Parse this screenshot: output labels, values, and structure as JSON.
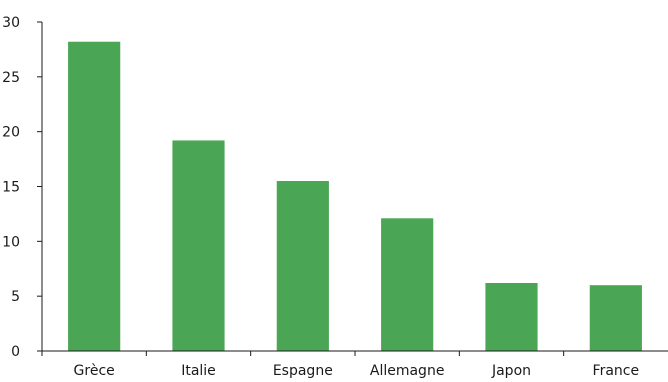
{
  "chart_data": {
    "type": "bar",
    "categories": [
      "Grèce",
      "Italie",
      "Espagne",
      "Allemagne",
      "Japon",
      "France"
    ],
    "values": [
      28.2,
      19.2,
      15.5,
      12.1,
      6.2,
      6.0
    ],
    "title": "",
    "xlabel": "",
    "ylabel": "",
    "ylim": [
      0,
      30
    ],
    "yticks": [
      0,
      5,
      10,
      15,
      20,
      25,
      30
    ],
    "bar_color": "#4aa654",
    "grid": false,
    "legend": "none"
  }
}
